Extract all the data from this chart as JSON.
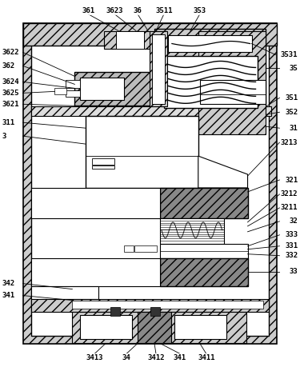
{
  "label_fontsize": 6.5,
  "hatch_color": "#aaaaaa",
  "dark_color": "#555555",
  "light_hatch": "///",
  "dark_hatch": "///",
  "lw_main": 1.0,
  "lw_sub": 0.7,
  "lw_line": 0.6,
  "top_labels": [
    [
      "361",
      110,
      13
    ],
    [
      "3623",
      143,
      13
    ],
    [
      "36",
      172,
      13
    ],
    [
      "3511",
      205,
      13
    ],
    [
      "353",
      250,
      13
    ]
  ],
  "left_labels": [
    [
      "3622",
      2,
      65
    ],
    [
      "362",
      2,
      82
    ],
    [
      "3624",
      2,
      102
    ],
    [
      "3625",
      2,
      116
    ],
    [
      "3621",
      2,
      130
    ],
    [
      "311",
      2,
      153
    ],
    [
      "3",
      2,
      170
    ]
  ],
  "right_labels": [
    [
      "3531",
      373,
      68
    ],
    [
      "35",
      373,
      85
    ],
    [
      "351",
      373,
      122
    ],
    [
      "352",
      373,
      140
    ],
    [
      "31",
      373,
      160
    ],
    [
      "3213",
      373,
      178
    ],
    [
      "321",
      373,
      225
    ],
    [
      "3212",
      373,
      243
    ],
    [
      "3211",
      373,
      260
    ],
    [
      "32",
      373,
      277
    ],
    [
      "333",
      373,
      294
    ],
    [
      "331",
      373,
      308
    ],
    [
      "332",
      373,
      320
    ],
    [
      "33",
      373,
      340
    ]
  ],
  "left_bot_labels": [
    [
      "342",
      2,
      355
    ],
    [
      "341",
      2,
      370
    ]
  ],
  "bot_labels": [
    [
      "3413",
      118,
      448
    ],
    [
      "34",
      158,
      448
    ],
    [
      "3412",
      195,
      448
    ],
    [
      "341",
      225,
      448
    ],
    [
      "3411",
      258,
      448
    ]
  ]
}
